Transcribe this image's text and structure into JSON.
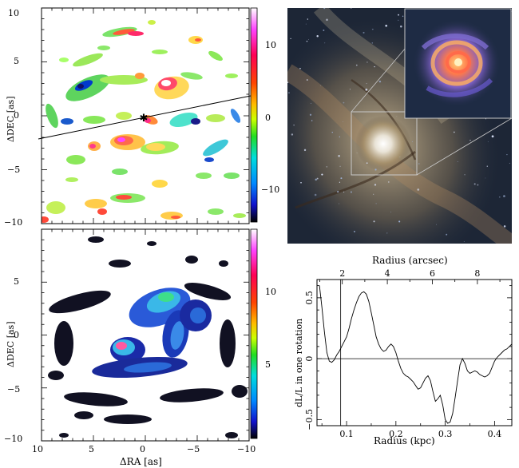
{
  "maps": {
    "top": {
      "ylabel": "ΔDEC [as]",
      "xticks": [
        "10",
        "5",
        "0",
        "−5",
        "−10"
      ],
      "yticks": [
        "10",
        "5",
        "0",
        "−5",
        "−10"
      ],
      "colorbar_ticks": [
        "10",
        "0",
        "−10"
      ],
      "colorbar_range": [
        -15,
        15
      ],
      "colorscale": "rainbow (black → blue → cyan → green → yellow → red → magenta → white)"
    },
    "bottom": {
      "ylabel": "ΔDEC [as]",
      "xlabel": "ΔRA [as]",
      "xticks": [
        "10",
        "5",
        "0",
        "−5",
        "−10"
      ],
      "yticks": [
        "5",
        "0",
        "−5",
        "−10"
      ],
      "colorbar_ticks": [
        "10",
        "5"
      ],
      "colorbar_range": [
        0,
        15
      ]
    }
  },
  "chart_data": [
    {
      "type": "line",
      "xlabel": "Radius (kpc)",
      "top_xlabel": "Radius (arcsec)",
      "ylabel": "dL/L in one rotation",
      "xlim": [
        0.04,
        0.435
      ],
      "ylim": [
        -0.55,
        0.65
      ],
      "xticks": [
        0.1,
        0.2,
        0.3,
        0.4
      ],
      "xtick_labels": [
        "0.1",
        "0.2",
        "0.3",
        "0.4"
      ],
      "yticks": [
        -0.5,
        0,
        0.5
      ],
      "ytick_labels": [
        "−0.5",
        "0",
        "0.5"
      ],
      "top_xticks_arcsec": [
        2,
        4,
        6,
        8
      ],
      "top_xtick_labels": [
        "2",
        "4",
        "6",
        "8"
      ],
      "vertical_marker_kpc": 0.088,
      "series": [
        {
          "x": [
            0.045,
            0.05,
            0.055,
            0.06,
            0.065,
            0.07,
            0.075,
            0.08,
            0.085,
            0.09,
            0.095,
            0.1,
            0.105,
            0.11,
            0.115,
            0.12,
            0.125,
            0.13,
            0.135,
            0.14,
            0.145,
            0.15,
            0.155,
            0.16,
            0.165,
            0.17,
            0.175,
            0.18,
            0.185,
            0.19,
            0.195,
            0.2,
            0.205,
            0.21,
            0.215,
            0.22,
            0.225,
            0.23,
            0.235,
            0.24,
            0.245,
            0.25,
            0.255,
            0.26,
            0.265,
            0.27,
            0.275,
            0.28,
            0.285,
            0.29,
            0.295,
            0.3,
            0.305,
            0.31,
            0.315,
            0.32,
            0.325,
            0.33,
            0.335,
            0.34,
            0.345,
            0.35,
            0.355,
            0.36,
            0.365,
            0.37,
            0.375,
            0.38,
            0.385,
            0.39,
            0.395,
            0.4,
            0.405,
            0.41,
            0.415,
            0.42,
            0.425,
            0.43,
            0.435
          ],
          "y": [
            0.6,
            0.42,
            0.22,
            0.05,
            -0.02,
            -0.03,
            -0.01,
            0.03,
            0.06,
            0.1,
            0.14,
            0.18,
            0.25,
            0.33,
            0.4,
            0.46,
            0.51,
            0.54,
            0.55,
            0.53,
            0.47,
            0.38,
            0.28,
            0.18,
            0.12,
            0.08,
            0.06,
            0.07,
            0.1,
            0.12,
            0.1,
            0.05,
            -0.02,
            -0.08,
            -0.12,
            -0.14,
            -0.15,
            -0.17,
            -0.19,
            -0.22,
            -0.25,
            -0.24,
            -0.2,
            -0.16,
            -0.14,
            -0.18,
            -0.27,
            -0.35,
            -0.33,
            -0.3,
            -0.38,
            -0.5,
            -0.53,
            -0.52,
            -0.45,
            -0.32,
            -0.18,
            -0.05,
            0.0,
            -0.04,
            -0.1,
            -0.12,
            -0.11,
            -0.1,
            -0.11,
            -0.13,
            -0.14,
            -0.15,
            -0.14,
            -0.12,
            -0.07,
            -0.02,
            0.01,
            0.03,
            0.05,
            0.07,
            0.08,
            0.1,
            0.12
          ]
        }
      ]
    }
  ],
  "photo": {
    "description_free": true
  }
}
